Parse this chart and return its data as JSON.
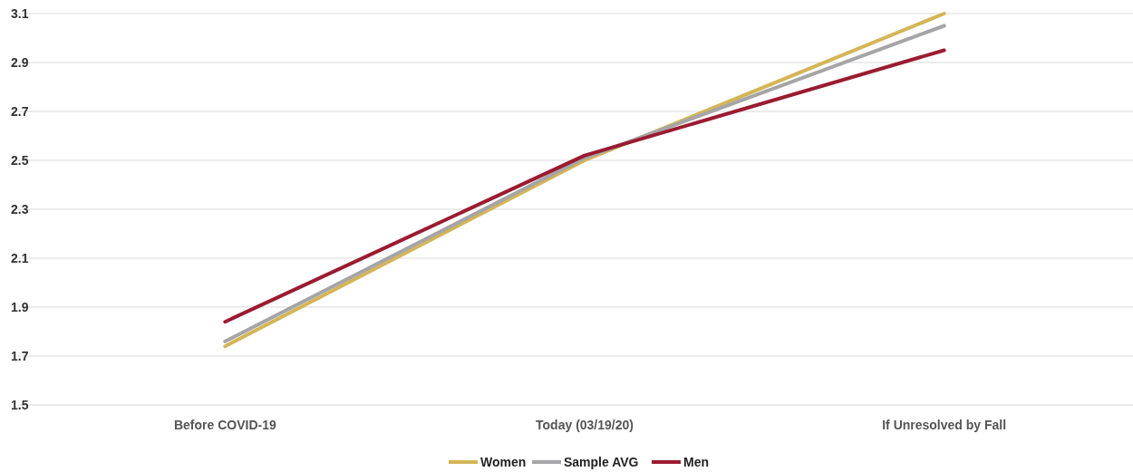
{
  "chart_data": {
    "type": "line",
    "categories": [
      "Before COVID-19",
      "Today (03/19/20)",
      "If Unresolved by Fall"
    ],
    "series": [
      {
        "name": "Women",
        "color": "#d4b556",
        "values": [
          1.74,
          2.5,
          3.1
        ]
      },
      {
        "name": "Sample AVG",
        "color": "#a5a5a8",
        "values": [
          1.76,
          2.51,
          3.05
        ]
      },
      {
        "name": "Men",
        "color": "#9b1b30",
        "values": [
          1.84,
          2.52,
          2.95
        ]
      }
    ],
    "ylim": [
      1.5,
      3.1
    ],
    "yticks": [
      1.5,
      1.7,
      1.9,
      2.1,
      2.3,
      2.5,
      2.7,
      2.9,
      3.1
    ],
    "grid": "y",
    "legend": "bottom",
    "marker": "none",
    "line_style": "solid"
  }
}
